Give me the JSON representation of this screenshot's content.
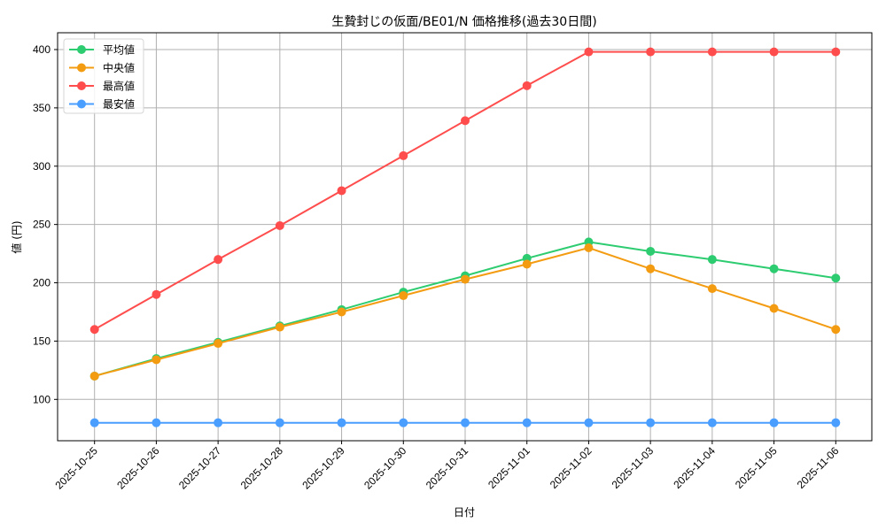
{
  "chart_data": {
    "type": "line",
    "title": "生贄封じの仮面/BE01/N 価格推移(過去30日間)",
    "xlabel": "日付",
    "ylabel": "値 (円)",
    "x": [
      "2025-10-25",
      "2025-10-26",
      "2025-10-27",
      "2025-10-28",
      "2025-10-29",
      "2025-10-30",
      "2025-10-31",
      "2025-11-01",
      "2025-11-02",
      "2025-11-03",
      "2025-11-04",
      "2025-11-05",
      "2025-11-06"
    ],
    "series": [
      {
        "name": "平均値",
        "color": "#2ecc71",
        "values": [
          120,
          135,
          149,
          163,
          177,
          192,
          206,
          221,
          235,
          227,
          220,
          212,
          204
        ]
      },
      {
        "name": "中央値",
        "color": "#f39c12",
        "values": [
          120,
          134,
          148,
          162,
          175,
          189,
          203,
          216,
          230,
          212,
          195,
          178,
          160
        ]
      },
      {
        "name": "最高値",
        "color": "#ff4d4d",
        "values": [
          160,
          190,
          220,
          249,
          279,
          309,
          339,
          369,
          398,
          398,
          398,
          398,
          398
        ]
      },
      {
        "name": "最安値",
        "color": "#4a9eff",
        "values": [
          80,
          80,
          80,
          80,
          80,
          80,
          80,
          80,
          80,
          80,
          80,
          80,
          80
        ]
      }
    ],
    "yticks": [
      100,
      150,
      200,
      250,
      300,
      350,
      400
    ],
    "ylim": [
      60,
      414
    ],
    "grid": true,
    "legend_position": "upper left",
    "x_tick_rotation": 45
  }
}
